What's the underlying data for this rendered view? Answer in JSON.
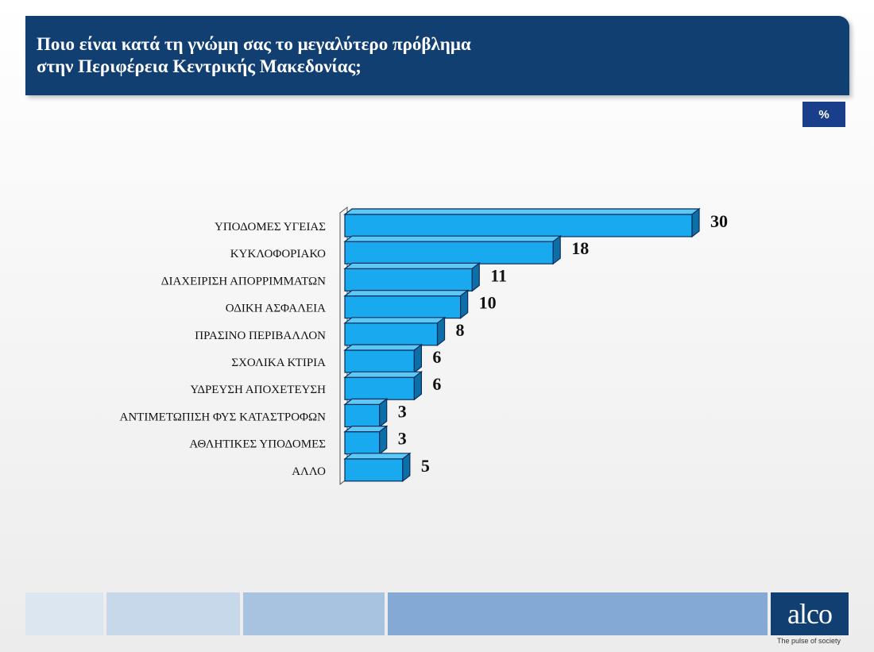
{
  "header": {
    "title_line1": "Ποιο είναι κατά τη γνώμη σας το μεγαλύτερο πρόβλημα",
    "title_line2": "στην Περιφέρεια Κεντρικής Μακεδονίας;"
  },
  "badge": {
    "unit": "%"
  },
  "logo": {
    "name": "alco",
    "tagline": "The pulse of society"
  },
  "colors": {
    "header": "#123f72",
    "bar_front": "#19a9ee",
    "bar_top": "#5cc8f5",
    "bar_side": "#0d6fa8",
    "bar_stroke": "#0a2d5c"
  },
  "chart_data": {
    "type": "bar",
    "orientation": "horizontal",
    "categories": [
      "ΥΠΟΔΟΜΕΣ ΥΓΕΙΑΣ",
      "ΚΥΚΛΟΦΟΡΙΑΚΟ",
      "ΔΙΑΧΕΙΡΙΣΗ ΑΠΟΡΡΙΜΜΑΤΩΝ",
      "ΟΔΙΚΗ ΑΣΦΑΛΕΙΑ",
      "ΠΡΑΣΙΝΟ ΠΕΡΙΒΑΛΛΟΝ",
      "ΣΧΟΛΙΚΑ ΚΤΙΡΙΑ",
      "ΥΔΡΕΥΣΗ ΑΠΟΧΕΤΕΥΣΗ",
      "ΑΝΤΙΜΕΤΩΠΙΣΗ ΦΥΣ ΚΑΤΑΣΤΡΟΦΩΝ",
      "ΑΘΛΗΤΙΚΕΣ ΥΠΟΔΟΜΕΣ",
      "ΑΛΛΟ"
    ],
    "values": [
      30,
      18,
      11,
      10,
      8,
      6,
      6,
      3,
      3,
      5
    ],
    "data_labels": [
      "30",
      "18",
      "11",
      "10",
      "8",
      "6",
      "6",
      "3",
      "3",
      "5"
    ],
    "xlim": [
      0,
      30
    ],
    "grid": false,
    "legend": "none"
  }
}
